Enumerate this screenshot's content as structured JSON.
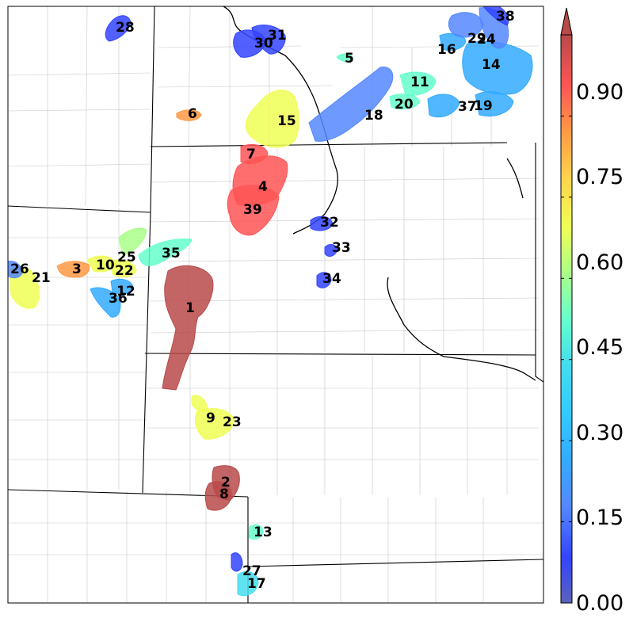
{
  "colorbar": {
    "tick_labels": [
      "0.00",
      "0.15",
      "0.30",
      "0.45",
      "0.60",
      "0.75",
      "0.90"
    ],
    "colors": [
      "#5a63b8",
      "#3344ff",
      "#5588ff",
      "#33aaff",
      "#44ddee",
      "#66ffcc",
      "#aaff88",
      "#eeff55",
      "#ffd24d",
      "#ff9944",
      "#ff5555",
      "#b84a4a"
    ]
  },
  "regions": [
    {
      "label": "1",
      "value": 0.98
    },
    {
      "label": "2",
      "value": 0.97
    },
    {
      "label": "3",
      "value": 0.82
    },
    {
      "label": "4",
      "value": 0.9
    },
    {
      "label": "5",
      "value": 0.5
    },
    {
      "label": "6",
      "value": 0.8
    },
    {
      "label": "7",
      "value": 0.88
    },
    {
      "label": "8",
      "value": 0.97
    },
    {
      "label": "9",
      "value": 0.63
    },
    {
      "label": "10",
      "value": 0.65
    },
    {
      "label": "11",
      "value": 0.45
    },
    {
      "label": "12",
      "value": 0.32
    },
    {
      "label": "13",
      "value": 0.45
    },
    {
      "label": "14",
      "value": 0.3
    },
    {
      "label": "15",
      "value": 0.68
    },
    {
      "label": "16",
      "value": 0.3
    },
    {
      "label": "17",
      "value": 0.42
    },
    {
      "label": "18",
      "value": 0.22
    },
    {
      "label": "19",
      "value": 0.3
    },
    {
      "label": "20",
      "value": 0.45
    },
    {
      "label": "21",
      "value": 0.65
    },
    {
      "label": "22",
      "value": 0.62
    },
    {
      "label": "23",
      "value": 0.63
    },
    {
      "label": "24",
      "value": 0.2
    },
    {
      "label": "25",
      "value": 0.55
    },
    {
      "label": "26",
      "value": 0.25
    },
    {
      "label": "27",
      "value": 0.15
    },
    {
      "label": "28",
      "value": 0.1
    },
    {
      "label": "29",
      "value": 0.25
    },
    {
      "label": "30",
      "value": 0.1
    },
    {
      "label": "31",
      "value": 0.1
    },
    {
      "label": "32",
      "value": 0.1
    },
    {
      "label": "33",
      "value": 0.1
    },
    {
      "label": "34",
      "value": 0.1
    },
    {
      "label": "35",
      "value": 0.45
    },
    {
      "label": "36",
      "value": 0.32
    },
    {
      "label": "37",
      "value": 0.3
    },
    {
      "label": "38",
      "value": 0.1
    },
    {
      "label": "39",
      "value": 0.9
    }
  ]
}
